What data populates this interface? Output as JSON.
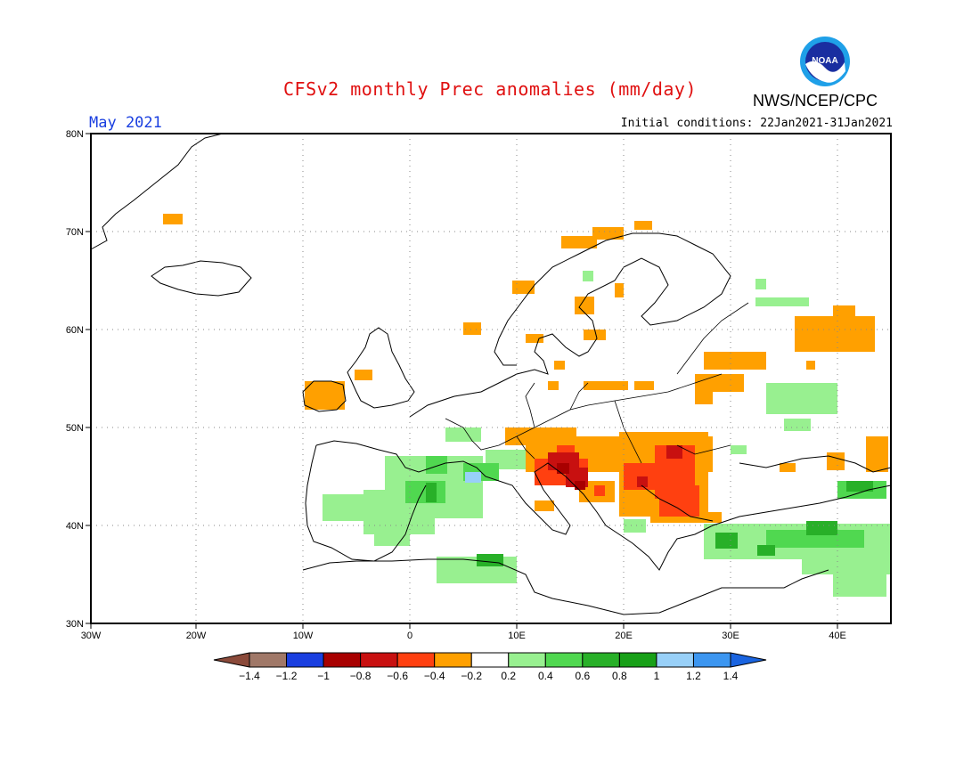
{
  "header": {
    "title": "CFSv2 monthly Prec anomalies (mm/day)",
    "month": "May 2021",
    "initial_conditions": "Initial conditions: 22Jan2021-31Jan2021",
    "agency": "NWS/NCEP/CPC",
    "logo_text": "NOAA"
  },
  "map": {
    "lon_range": [
      -30,
      45
    ],
    "lat_range": [
      30,
      80
    ],
    "lat_labels": [
      "80N",
      "70N",
      "60N",
      "50N",
      "40N",
      "30N"
    ],
    "lon_labels": [
      "30W",
      "20W",
      "10W",
      "0",
      "10E",
      "20E",
      "30E",
      "40E"
    ],
    "grid": true
  },
  "colorbar": {
    "ticks": [
      "-1.4",
      "-1.2",
      "-1",
      "-0.8",
      "-0.6",
      "-0.4",
      "-0.2",
      "0.2",
      "0.4",
      "0.6",
      "0.8",
      "1",
      "1.2",
      "1.4"
    ],
    "colors": [
      "#8b4a3a",
      "#a07868",
      "#1a3fe0",
      "#a80000",
      "#c81010",
      "#ff4010",
      "#ffa000",
      "#ffffff",
      "#98f090",
      "#50d850",
      "#28b028",
      "#18a018",
      "#98d0f8",
      "#3c96f0",
      "#1a64e0"
    ]
  },
  "anomaly_regions": [
    {
      "name": "north-italy-adriatic",
      "value": -0.6
    },
    {
      "name": "balkans-romania",
      "value": -0.4
    },
    {
      "name": "hungary",
      "value": -0.6
    },
    {
      "name": "central-europe",
      "value": -0.2
    },
    {
      "name": "norway-coast",
      "value": -0.2
    },
    {
      "name": "ireland",
      "value": -0.2
    },
    {
      "name": "western-russia",
      "value": -0.2
    },
    {
      "name": "iberia",
      "value": 0.4
    },
    {
      "name": "south-france",
      "value": 0.4
    },
    {
      "name": "turkey",
      "value": 0.6
    },
    {
      "name": "north-africa",
      "value": 0.4
    },
    {
      "name": "gulf-of-lion",
      "value": 1.0
    }
  ]
}
